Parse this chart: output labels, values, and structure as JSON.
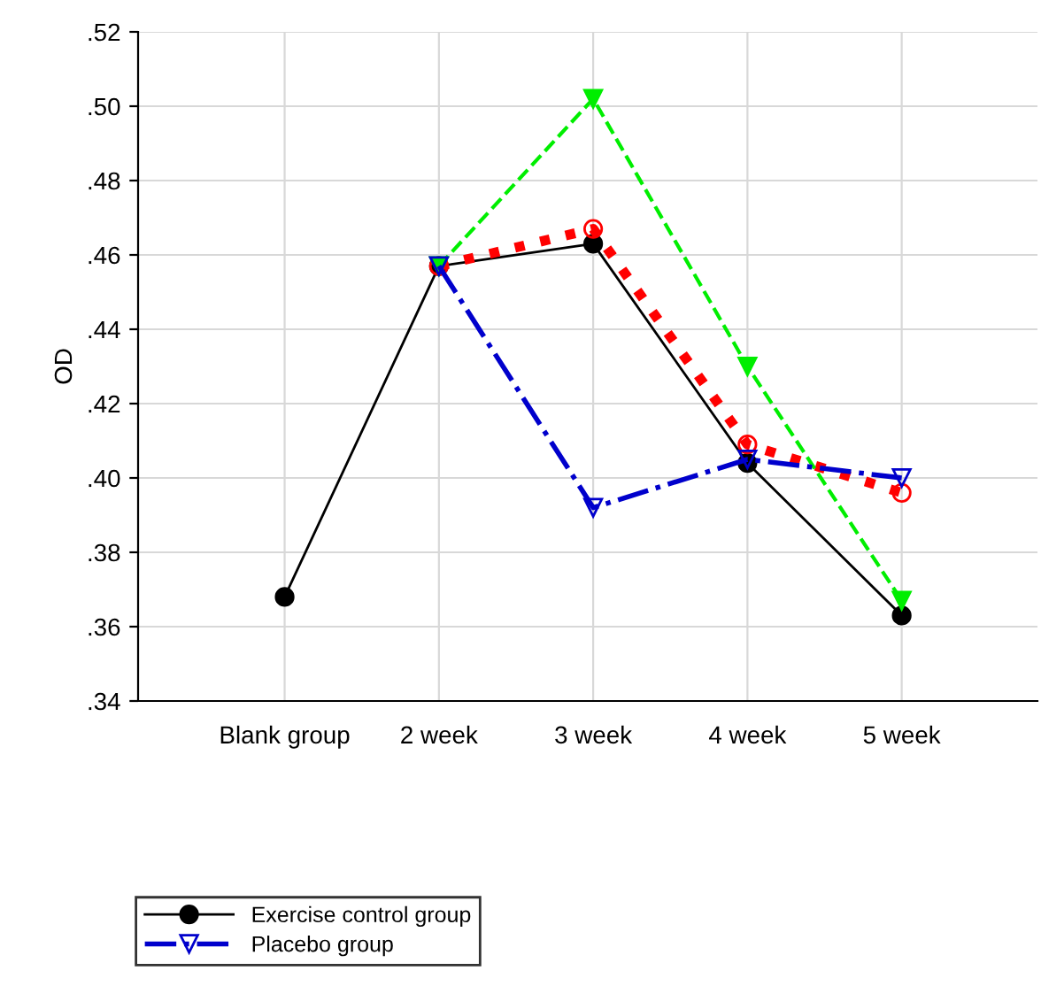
{
  "chart_data": {
    "type": "line",
    "ylabel": "OD",
    "categories": [
      "Blank group",
      "2 week",
      "3 week",
      "4 week",
      "5 week"
    ],
    "series": [
      {
        "name": "Exercise control group",
        "color": "#000000",
        "line_style": "solid",
        "marker": "circle",
        "values": [
          0.368,
          0.457,
          0.463,
          0.404,
          0.363
        ]
      },
      {
        "color": "#ff0000",
        "line_style": "dotted",
        "marker": "circle",
        "values": [
          null,
          0.457,
          0.467,
          0.409,
          0.396
        ]
      },
      {
        "color": "#00ee00",
        "line_style": "dashed",
        "marker": "triangle",
        "values": [
          null,
          0.457,
          0.502,
          0.43,
          0.367
        ]
      },
      {
        "name": "Placebo group",
        "color": "#0000cc",
        "line_style": "dashdot",
        "marker": "triangle",
        "values": [
          null,
          0.457,
          0.392,
          0.405,
          0.4
        ]
      }
    ],
    "ylim": [
      0.34,
      0.52
    ],
    "yticks": [
      {
        "value": 0.34,
        "label": ".34"
      },
      {
        "value": 0.36,
        "label": ".36"
      },
      {
        "value": 0.38,
        "label": ".38"
      },
      {
        "value": 0.4,
        "label": ".40"
      },
      {
        "value": 0.42,
        "label": ".42"
      },
      {
        "value": 0.44,
        "label": ".44"
      },
      {
        "value": 0.46,
        "label": ".46"
      },
      {
        "value": 0.48,
        "label": ".48"
      },
      {
        "value": 0.5,
        "label": ".50"
      },
      {
        "value": 0.52,
        "label": ".52"
      }
    ],
    "grid": true,
    "legend": "bottom left"
  }
}
